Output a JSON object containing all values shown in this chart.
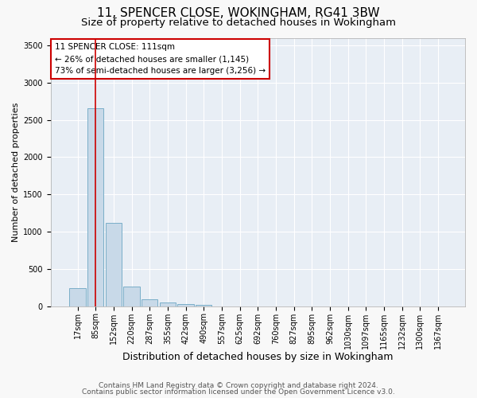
{
  "title1": "11, SPENCER CLOSE, WOKINGHAM, RG41 3BW",
  "title2": "Size of property relative to detached houses in Wokingham",
  "xlabel": "Distribution of detached houses by size in Wokingham",
  "ylabel": "Number of detached properties",
  "categories": [
    "17sqm",
    "85sqm",
    "152sqm",
    "220sqm",
    "287sqm",
    "355sqm",
    "422sqm",
    "490sqm",
    "557sqm",
    "625sqm",
    "692sqm",
    "760sqm",
    "827sqm",
    "895sqm",
    "962sqm",
    "1030sqm",
    "1097sqm",
    "1165sqm",
    "1232sqm",
    "1300sqm",
    "1367sqm"
  ],
  "values": [
    240,
    2650,
    1120,
    260,
    90,
    50,
    30,
    20,
    0,
    0,
    0,
    0,
    0,
    0,
    0,
    0,
    0,
    0,
    0,
    0,
    0
  ],
  "bar_color": "#c8d9e8",
  "bar_edge_color": "#7aaec8",
  "vline_x": 1.0,
  "vline_color": "#cc0000",
  "ylim": [
    0,
    3600
  ],
  "yticks": [
    0,
    500,
    1000,
    1500,
    2000,
    2500,
    3000,
    3500
  ],
  "annotation_text": "11 SPENCER CLOSE: 111sqm\n← 26% of detached houses are smaller (1,145)\n73% of semi-detached houses are larger (3,256) →",
  "annotation_box_color": "#ffffff",
  "annotation_box_edge": "#cc0000",
  "footer1": "Contains HM Land Registry data © Crown copyright and database right 2024.",
  "footer2": "Contains public sector information licensed under the Open Government Licence v3.0.",
  "plot_bg_color": "#e8eef5",
  "fig_bg_color": "#f8f8f8",
  "grid_color": "#ffffff",
  "title1_fontsize": 11,
  "title2_fontsize": 9.5,
  "xlabel_fontsize": 9,
  "ylabel_fontsize": 8,
  "tick_fontsize": 7,
  "annotation_fontsize": 7.5,
  "footer_fontsize": 6.5
}
